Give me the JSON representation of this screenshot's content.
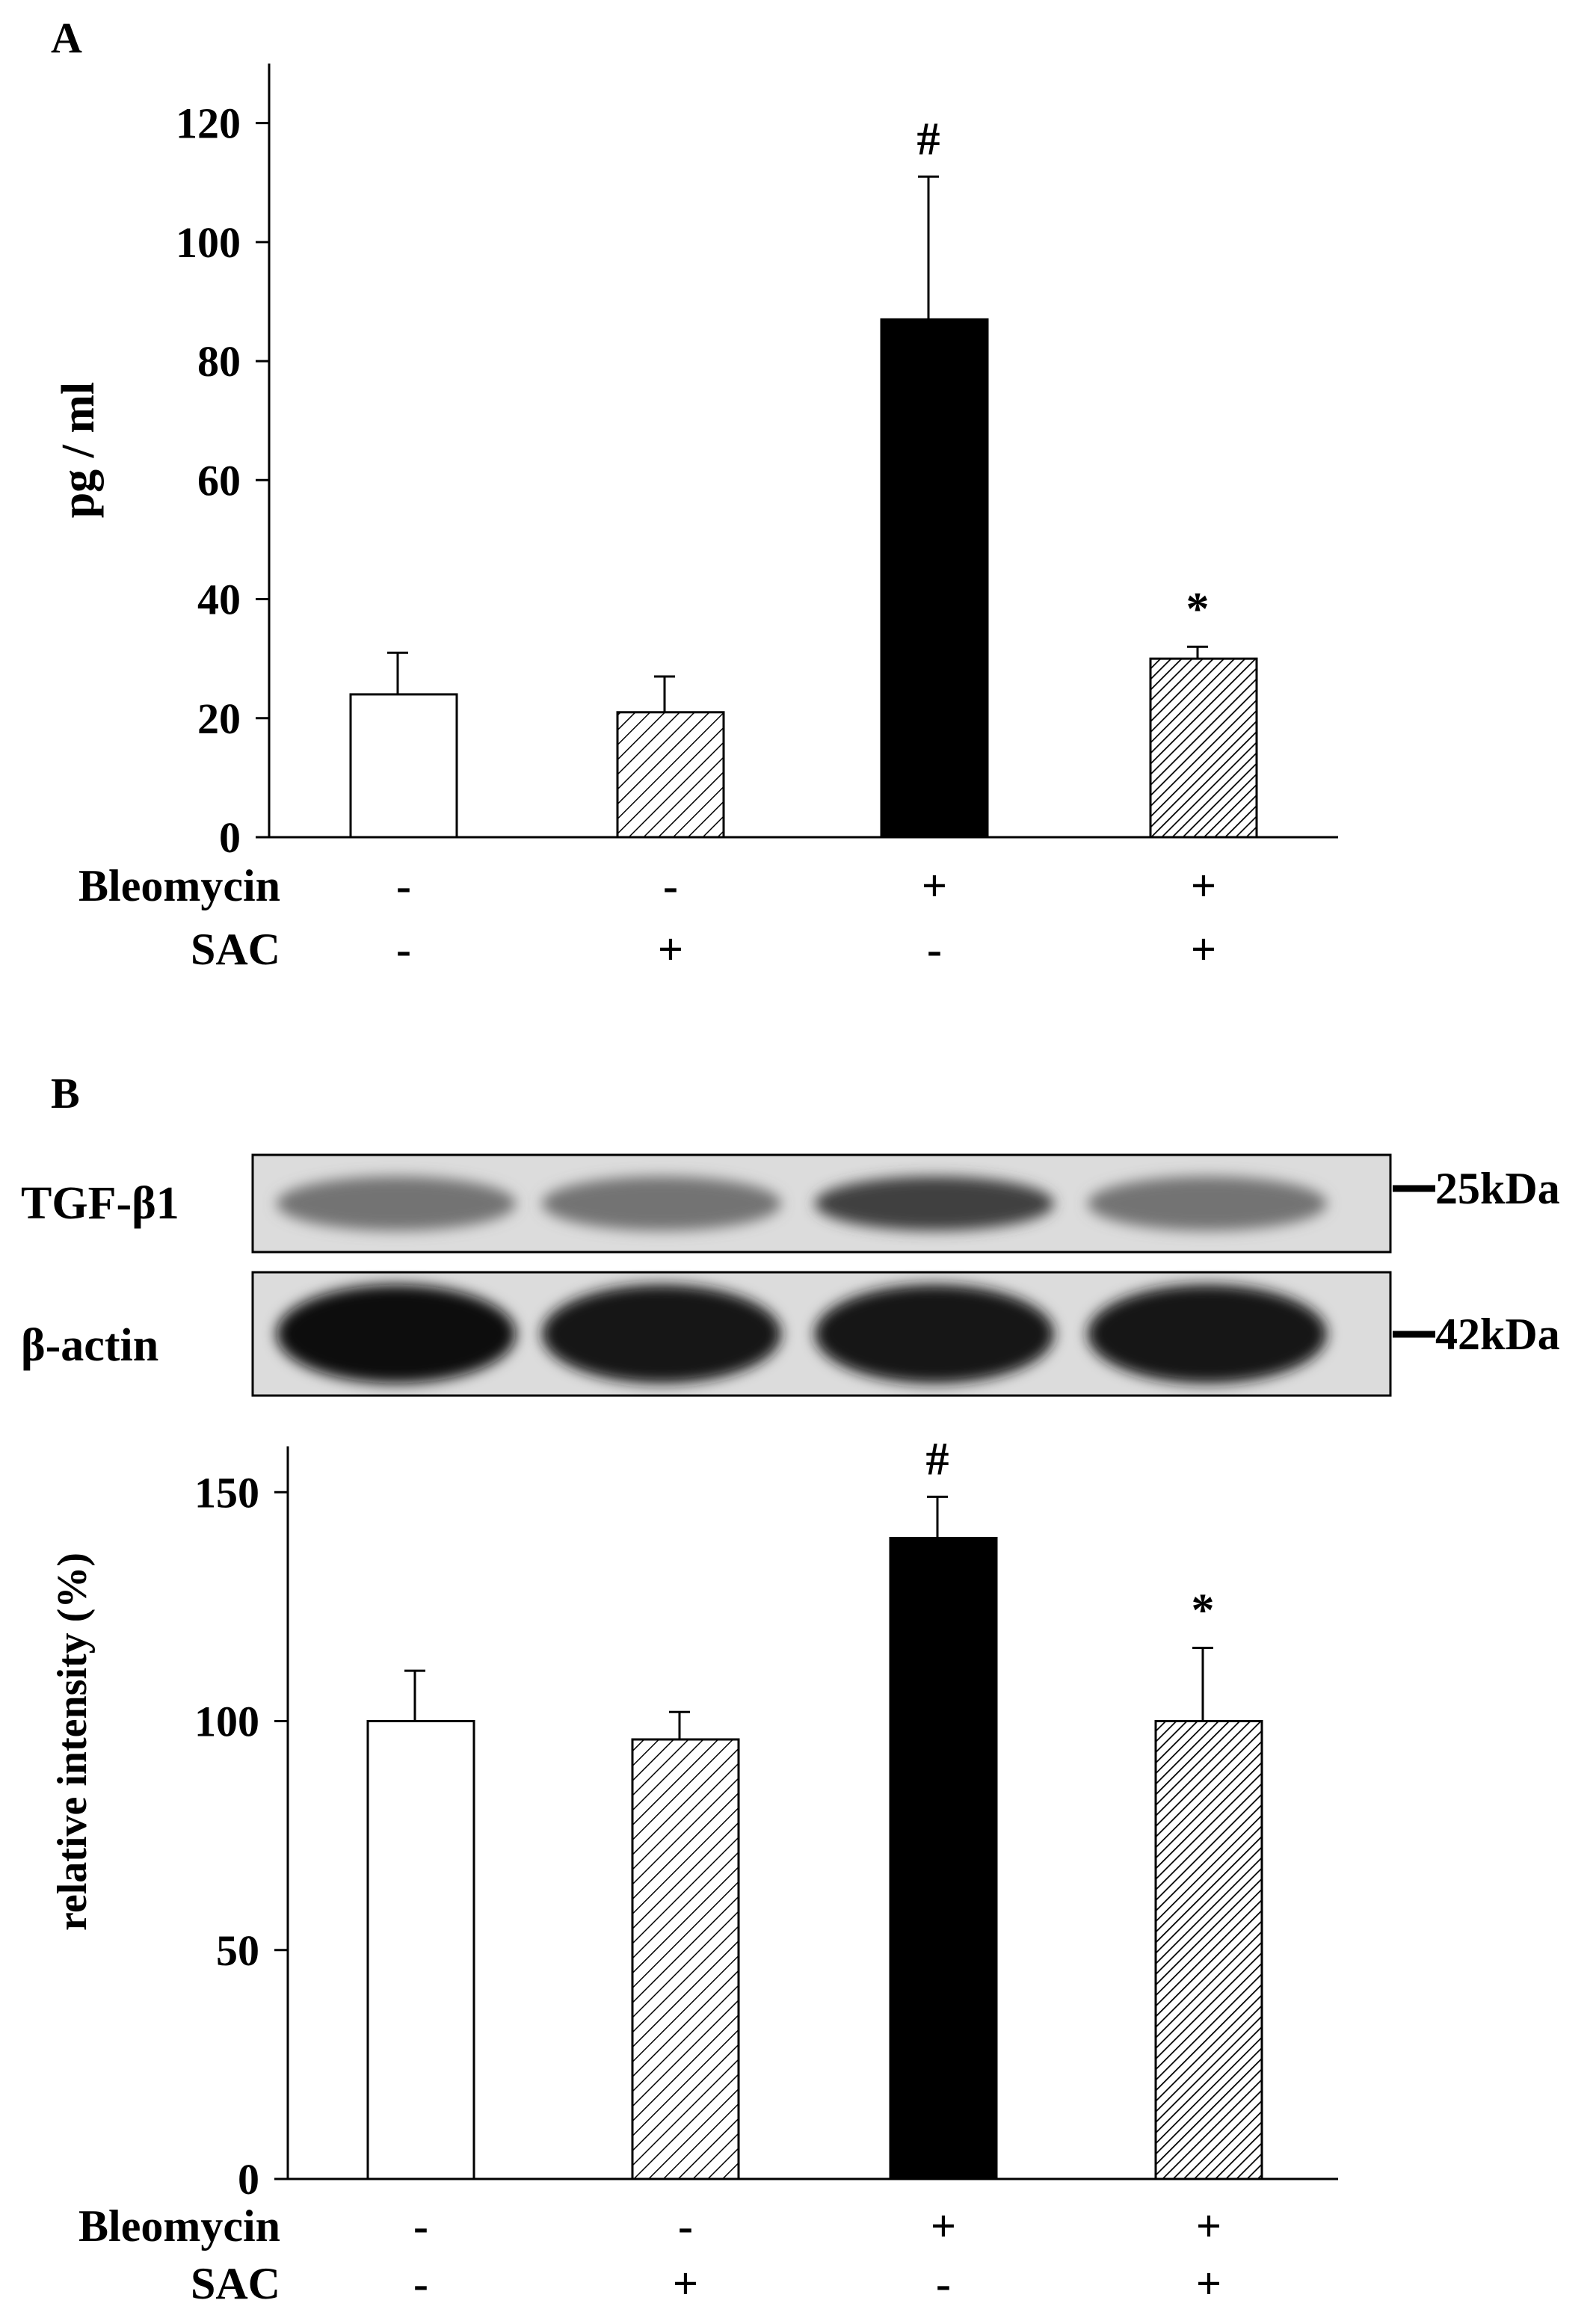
{
  "chart_data": [
    {
      "panel_label": "A",
      "type": "bar",
      "ylabel": "pg / ml",
      "ylim": [
        0,
        130
      ],
      "yticks": [
        0,
        20,
        40,
        60,
        80,
        100,
        120
      ],
      "yticks_text": [
        "0",
        "20",
        "40",
        "60",
        "80",
        "100",
        "120"
      ],
      "values": [
        24,
        21,
        87,
        30
      ],
      "errors": [
        7,
        6,
        24,
        2
      ],
      "fills": [
        "white",
        "hatch",
        "black",
        "hatch-dense"
      ],
      "annotations": [
        "",
        "",
        "#",
        "*"
      ],
      "conditions": [
        {
          "label": "Bleomycin",
          "values": [
            "-",
            "-",
            "+",
            "+"
          ]
        },
        {
          "label": "SAC",
          "values": [
            "-",
            "+",
            "-",
            "+"
          ]
        }
      ]
    },
    {
      "panel_label": "B",
      "type": "bar",
      "ylabel": "relative intensity (%)",
      "ylim": [
        0,
        160
      ],
      "yticks": [
        0,
        50,
        100,
        150
      ],
      "yticks_text": [
        "0",
        "50",
        "100",
        "150"
      ],
      "values": [
        100,
        96,
        140,
        100
      ],
      "errors": [
        11,
        6,
        9,
        16
      ],
      "fills": [
        "white",
        "hatch",
        "black",
        "hatch-dense"
      ],
      "annotations": [
        "",
        "",
        "#",
        "*"
      ],
      "conditions": [
        {
          "label": "Bleomycin",
          "values": [
            "-",
            "-",
            "+",
            "+"
          ]
        },
        {
          "label": "SAC",
          "values": [
            "-",
            "+",
            "-",
            "+"
          ]
        }
      ]
    }
  ],
  "blot": {
    "rows": [
      {
        "label": "TGF-β1",
        "marker": "25kDa",
        "band_darkness": [
          0.55,
          0.55,
          0.75,
          0.55
        ],
        "band_thickness": 0.28
      },
      {
        "label": "β-actin",
        "marker": "42kDa",
        "band_darkness": [
          0.95,
          0.9,
          0.9,
          0.92
        ],
        "band_thickness": 0.4
      }
    ]
  }
}
